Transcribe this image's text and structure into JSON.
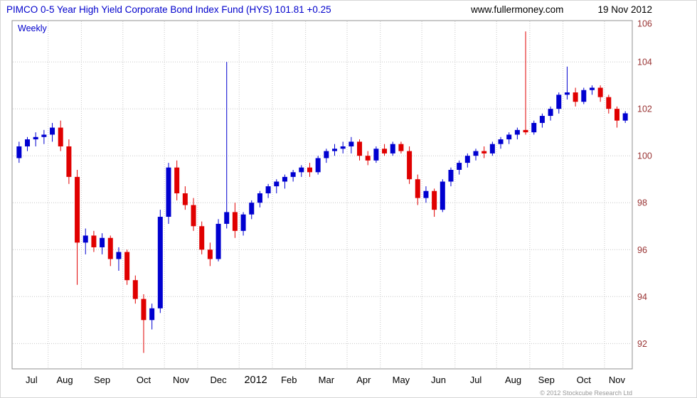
{
  "header": {
    "title": "PIMCO 0-5 Year High Yield Corporate Bond Index Fund (HYS) 101.81 +0.25",
    "site": "www.fullermoney.com",
    "date": "19 Nov 2012"
  },
  "chart": {
    "timeframe_label": "Weekly",
    "copyright": "© 2012 Stockcube Research Ltd"
  },
  "colors": {
    "up": "#0000d0",
    "down": "#e00000",
    "grid": "#c6c6c6",
    "border": "#909090",
    "y_label": "#993333",
    "x_label": "#000000"
  },
  "chart_data": {
    "type": "candlestick",
    "title": "PIMCO 0-5 Year High Yield Corporate Bond Index Fund (HYS)",
    "interval": "weekly",
    "last_price": 101.81,
    "change": 0.25,
    "ylim": [
      90.92,
      105.76
    ],
    "yticks": [
      92,
      94,
      96,
      98,
      100,
      102,
      104,
      106
    ],
    "months": [
      {
        "label": "Jul",
        "weeks": 4
      },
      {
        "label": "Aug",
        "weeks": 4
      },
      {
        "label": "Sep",
        "weeks": 5
      },
      {
        "label": "Oct",
        "weeks": 5
      },
      {
        "label": "Nov",
        "weeks": 4
      },
      {
        "label": "Dec",
        "weeks": 5
      },
      {
        "label": "2012",
        "weeks": 4,
        "emphasis": true
      },
      {
        "label": "Feb",
        "weeks": 4
      },
      {
        "label": "Mar",
        "weeks": 5
      },
      {
        "label": "Apr",
        "weeks": 4
      },
      {
        "label": "May",
        "weeks": 5
      },
      {
        "label": "Jun",
        "weeks": 4
      },
      {
        "label": "Jul",
        "weeks": 5
      },
      {
        "label": "Aug",
        "weeks": 4
      },
      {
        "label": "Sep",
        "weeks": 4
      },
      {
        "label": "Oct",
        "weeks": 5
      },
      {
        "label": "Nov",
        "weeks": 3
      }
    ],
    "candles": [
      [
        99.9,
        100.6,
        99.7,
        100.4
      ],
      [
        100.4,
        100.8,
        100.2,
        100.7
      ],
      [
        100.7,
        101.0,
        100.4,
        100.8
      ],
      [
        100.8,
        101.1,
        100.5,
        100.9
      ],
      [
        100.9,
        101.4,
        100.6,
        101.2
      ],
      [
        101.2,
        101.5,
        100.2,
        100.4
      ],
      [
        100.4,
        100.7,
        98.8,
        99.1
      ],
      [
        99.1,
        99.4,
        94.5,
        96.3
      ],
      [
        96.3,
        96.9,
        95.8,
        96.6
      ],
      [
        96.6,
        96.8,
        95.9,
        96.1
      ],
      [
        96.1,
        96.7,
        95.8,
        96.5
      ],
      [
        96.5,
        96.6,
        95.3,
        95.6
      ],
      [
        95.6,
        96.1,
        95.1,
        95.9
      ],
      [
        95.9,
        96.0,
        94.5,
        94.7
      ],
      [
        94.7,
        94.9,
        93.7,
        93.9
      ],
      [
        93.9,
        94.1,
        91.6,
        93.0
      ],
      [
        93.0,
        93.7,
        92.6,
        93.5
      ],
      [
        93.5,
        97.7,
        93.3,
        97.4
      ],
      [
        97.4,
        99.7,
        97.1,
        99.5
      ],
      [
        99.5,
        99.8,
        98.1,
        98.4
      ],
      [
        98.4,
        98.7,
        97.7,
        97.9
      ],
      [
        97.9,
        98.2,
        96.8,
        97.0
      ],
      [
        97.0,
        97.2,
        95.8,
        96.0
      ],
      [
        96.0,
        96.3,
        95.3,
        95.6
      ],
      [
        95.6,
        97.3,
        95.5,
        97.1
      ],
      [
        97.1,
        104.0,
        96.9,
        97.6
      ],
      [
        97.6,
        98.0,
        96.5,
        96.8
      ],
      [
        96.8,
        97.6,
        96.6,
        97.5
      ],
      [
        97.5,
        98.1,
        97.3,
        98.0
      ],
      [
        98.0,
        98.5,
        97.8,
        98.4
      ],
      [
        98.4,
        98.8,
        98.2,
        98.7
      ],
      [
        98.7,
        99.0,
        98.4,
        98.9
      ],
      [
        98.9,
        99.2,
        98.6,
        99.1
      ],
      [
        99.1,
        99.4,
        98.9,
        99.3
      ],
      [
        99.3,
        99.6,
        99.1,
        99.5
      ],
      [
        99.5,
        99.7,
        99.1,
        99.3
      ],
      [
        99.3,
        100.0,
        99.2,
        99.9
      ],
      [
        99.9,
        100.3,
        99.7,
        100.2
      ],
      [
        100.2,
        100.5,
        100.0,
        100.3
      ],
      [
        100.3,
        100.6,
        100.1,
        100.4
      ],
      [
        100.4,
        100.8,
        100.1,
        100.6
      ],
      [
        100.6,
        100.7,
        99.8,
        100.0
      ],
      [
        100.0,
        100.2,
        99.6,
        99.8
      ],
      [
        99.8,
        100.4,
        99.7,
        100.3
      ],
      [
        100.3,
        100.5,
        100.0,
        100.1
      ],
      [
        100.1,
        100.6,
        100.0,
        100.5
      ],
      [
        100.5,
        100.6,
        100.1,
        100.2
      ],
      [
        100.2,
        100.4,
        98.8,
        99.0
      ],
      [
        99.0,
        99.2,
        97.9,
        98.2
      ],
      [
        98.2,
        98.7,
        98.0,
        98.5
      ],
      [
        98.5,
        98.6,
        97.4,
        97.7
      ],
      [
        97.7,
        99.0,
        97.6,
        98.9
      ],
      [
        98.9,
        99.5,
        98.7,
        99.4
      ],
      [
        99.4,
        99.8,
        99.2,
        99.7
      ],
      [
        99.7,
        100.1,
        99.5,
        100.0
      ],
      [
        100.0,
        100.3,
        99.8,
        100.2
      ],
      [
        100.2,
        100.4,
        99.9,
        100.1
      ],
      [
        100.1,
        100.6,
        100.0,
        100.5
      ],
      [
        100.5,
        100.8,
        100.3,
        100.7
      ],
      [
        100.7,
        101.0,
        100.5,
        100.9
      ],
      [
        100.9,
        101.2,
        100.7,
        101.1
      ],
      [
        101.1,
        105.3,
        100.9,
        101.0
      ],
      [
        101.0,
        101.5,
        100.9,
        101.4
      ],
      [
        101.4,
        101.8,
        101.2,
        101.7
      ],
      [
        101.7,
        102.1,
        101.5,
        102.0
      ],
      [
        102.0,
        102.7,
        101.8,
        102.6
      ],
      [
        102.6,
        103.8,
        102.4,
        102.7
      ],
      [
        102.7,
        102.9,
        102.1,
        102.3
      ],
      [
        102.3,
        102.9,
        102.2,
        102.8
      ],
      [
        102.8,
        103.0,
        102.6,
        102.9
      ],
      [
        102.9,
        103.0,
        102.3,
        102.5
      ],
      [
        102.5,
        102.6,
        101.8,
        102.0
      ],
      [
        102.0,
        102.1,
        101.2,
        101.5
      ],
      [
        101.5,
        101.9,
        101.4,
        101.81
      ]
    ]
  }
}
